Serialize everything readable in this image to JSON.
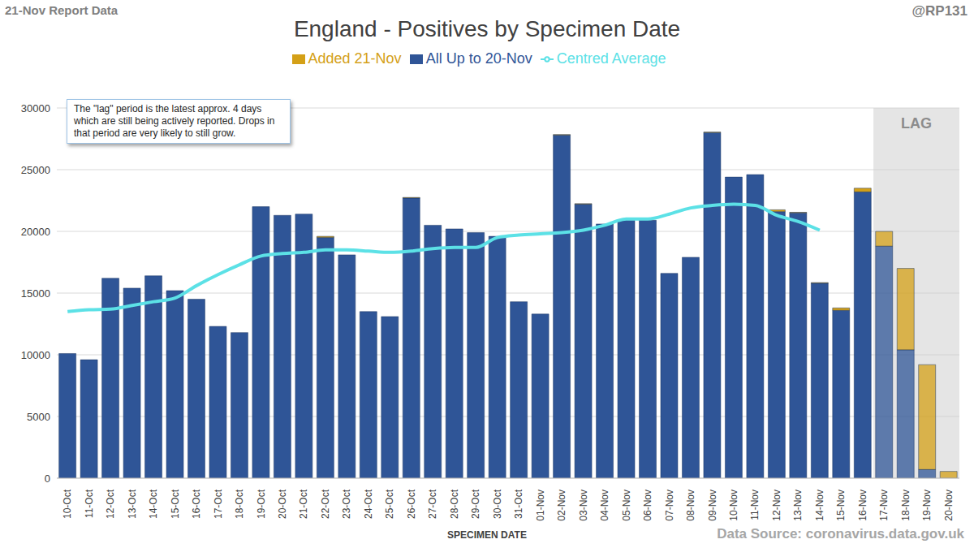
{
  "chart_data": {
    "type": "bar",
    "title": "England - Positives by Specimen Date",
    "corner_label": "21-Nov Report Data",
    "handle": "@RP131",
    "source": "Data Source: coronavirus.data.gov.uk",
    "x_label": "SPECIMEN DATE",
    "annotation": "The \"lag\" period is the latest approx. 4 days which are still being actively reported. Drops in that period are very likely to still grow.",
    "lag": {
      "from": "17-Nov",
      "to": "20-Nov",
      "label": "LAG"
    },
    "stacked": true,
    "grid": true,
    "legend": "top",
    "categories": [
      "10-Oct",
      "11-Oct",
      "12-Oct",
      "13-Oct",
      "14-Oct",
      "15-Oct",
      "16-Oct",
      "17-Oct",
      "18-Oct",
      "19-Oct",
      "20-Oct",
      "21-Oct",
      "22-Oct",
      "23-Oct",
      "24-Oct",
      "25-Oct",
      "26-Oct",
      "27-Oct",
      "28-Oct",
      "29-Oct",
      "30-Oct",
      "31-Oct",
      "01-Nov",
      "02-Nov",
      "03-Nov",
      "04-Nov",
      "05-Nov",
      "06-Nov",
      "07-Nov",
      "08-Nov",
      "09-Nov",
      "10-Nov",
      "11-Nov",
      "12-Nov",
      "13-Nov",
      "14-Nov",
      "15-Nov",
      "16-Nov",
      "17-Nov",
      "18-Nov",
      "19-Nov",
      "20-Nov"
    ],
    "series": [
      {
        "name": "All Up to 20-Nov",
        "type": "bar",
        "color": "#2f5597",
        "values": [
          10100,
          9600,
          16200,
          15400,
          16400,
          15200,
          14500,
          12300,
          11800,
          22000,
          21300,
          21400,
          19500,
          18100,
          13500,
          13100,
          22700,
          20500,
          20200,
          19900,
          19600,
          14300,
          13300,
          27800,
          22200,
          20600,
          20900,
          20900,
          16600,
          17900,
          28000,
          24400,
          24600,
          21600,
          21500,
          15800,
          13600,
          23200,
          18800,
          10400,
          700,
          0
        ]
      },
      {
        "name": "Added 21-Nov",
        "type": "bar",
        "color": "#d4a017",
        "values": [
          0,
          0,
          0,
          0,
          0,
          0,
          0,
          0,
          0,
          0,
          0,
          0,
          100,
          0,
          0,
          0,
          50,
          0,
          0,
          0,
          0,
          0,
          0,
          50,
          50,
          0,
          0,
          0,
          0,
          0,
          50,
          0,
          0,
          150,
          50,
          50,
          200,
          300,
          1200,
          6600,
          8500,
          550
        ]
      },
      {
        "name": "Centred Average",
        "type": "line",
        "color": "#5ce1e6",
        "values": [
          13500,
          13650,
          13700,
          14000,
          14300,
          14600,
          15600,
          16500,
          17300,
          18000,
          18200,
          18300,
          18500,
          18500,
          18400,
          18300,
          18400,
          18600,
          18700,
          18700,
          19500,
          19700,
          19800,
          19900,
          20100,
          20500,
          21000,
          21000,
          21400,
          21900,
          22100,
          22200,
          22100,
          21300,
          20800,
          20100,
          null,
          null,
          null,
          null,
          null,
          null
        ]
      }
    ],
    "ylim": [
      0,
      30000
    ],
    "yticks": [
      0,
      5000,
      10000,
      15000,
      20000,
      25000,
      30000
    ]
  }
}
